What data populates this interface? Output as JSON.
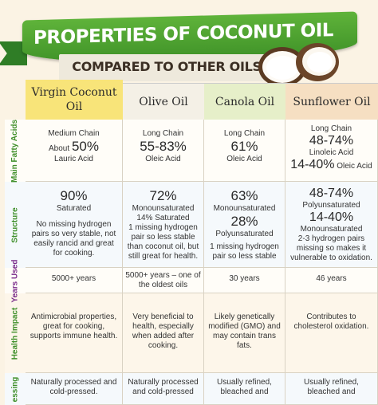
{
  "header": {
    "title": "PROPERTIES OF COCONUT OIL",
    "subtitle": "COMPARED TO OTHER OILS"
  },
  "columns": [
    "Virgin Coconut Oil",
    "Olive Oil",
    "Canola Oil",
    "Sunflower Oil"
  ],
  "rows": {
    "fatty_acids": {
      "label": "Main Fatty Acids",
      "virgin": {
        "line1": "Medium Chain",
        "about": "About",
        "value": "50%",
        "line3": "Lauric Acid"
      },
      "olive": {
        "line1": "Long Chain",
        "value": "55-83%",
        "line3": "Oleic Acid"
      },
      "canola": {
        "line1": "Long Chain",
        "value": "61%",
        "line3": "Oleic Acid"
      },
      "sunflower": {
        "line1": "Long Chain",
        "value1": "48-74%",
        "line2": "Linoleic Acid",
        "value2": "14-40%",
        "line4": "Oleic Acid"
      }
    },
    "structure": {
      "label": "Structure",
      "virgin": {
        "value": "90%",
        "sub": "Saturated",
        "desc": "No missing hydrogen pairs so very stable, not easily rancid and great for cooking."
      },
      "olive": {
        "value": "72%",
        "sub": "Monounsaturated",
        "sub2": "14% Saturated",
        "desc": "1 missing hydrogen pair so less stable than coconut oil, but still great for health."
      },
      "canola": {
        "value1": "63%",
        "sub1": "Monounsaturated",
        "value2": "28%",
        "sub2": "Polyunsaturated",
        "desc": "1 missing hydrogen pair so less stable"
      },
      "sunflower": {
        "value1": "48-74%",
        "sub1": "Polyunsaturated",
        "value2": "14-40%",
        "sub2": "Monounsaturated",
        "desc": "2-3 hydrogen pairs missing so makes it vulnerable to oxidation."
      }
    },
    "years_used": {
      "label": "Years Used",
      "virgin": "5000+ years",
      "olive": "5000+ years – one of the oldest oils",
      "canola": "30 years",
      "sunflower": "46 years"
    },
    "health_impact": {
      "label": "Health Impact",
      "virgin": "Antimicrobial properties, great for cooking, supports immune health.",
      "olive": "Very beneficial to health, especially when added after cooking.",
      "canola": "Likely genetically modified (GMO) and may contain trans fats.",
      "sunflower": "Contributes to cholesterol oxidation."
    },
    "processing": {
      "label": "essing",
      "virgin": "Naturally processed and cold-pressed.",
      "olive": "Naturally processed and cold-pressed",
      "canola": "Usually refined, bleached and",
      "sunflower": "Usually refined, bleached and"
    }
  },
  "colors": {
    "banner": "#4ca330",
    "virgin_header": "#f8e479",
    "canola_header": "#e6efc9",
    "sunflower_header": "#f6dfc2",
    "row_label": "#3f8f2a"
  }
}
